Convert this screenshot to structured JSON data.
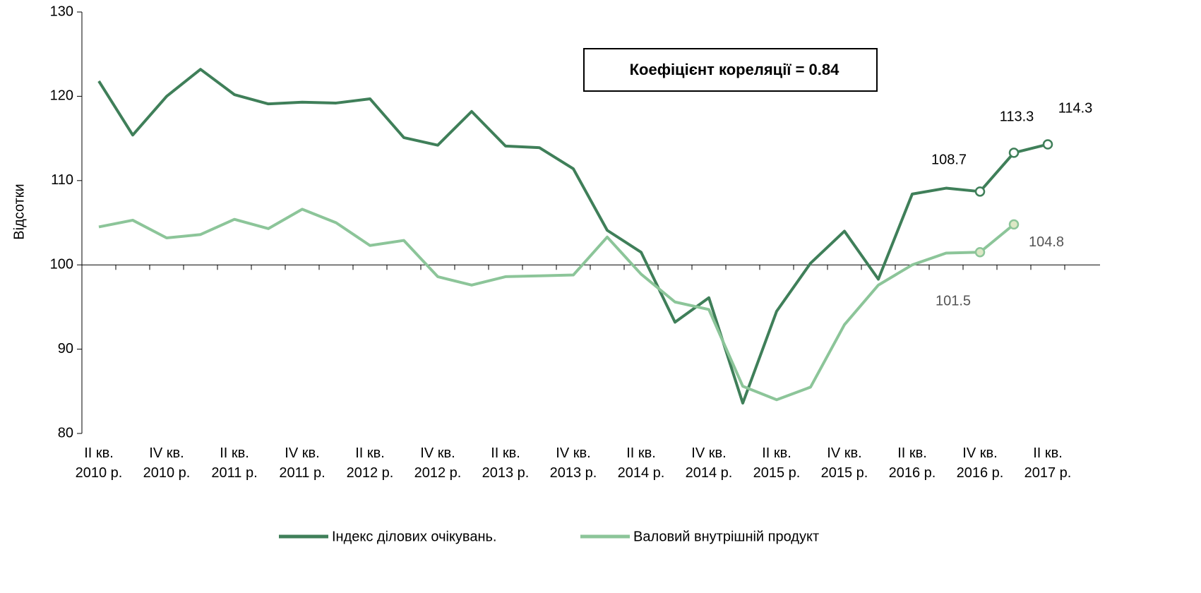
{
  "chart_data": {
    "type": "line",
    "ylabel": "Відсотки",
    "annotation": "Коефіцієнт кореляції = 0.84",
    "categories": [
      "II кв.\n2010 р.",
      null,
      "IV кв.\n2010 р.",
      null,
      "II кв.\n2011 р.",
      null,
      "IV кв.\n2011 р.",
      null,
      "II кв.\n2012 р.",
      null,
      "IV кв.\n2012 р.",
      null,
      "II кв.\n2013 р.",
      null,
      "IV кв.\n2013 р.",
      null,
      "II кв.\n2014 р.",
      null,
      "IV кв.\n2014 р.",
      null,
      "II кв.\n2015 р.",
      null,
      "IV кв.\n2015 р.",
      null,
      "II кв.\n2016 р.",
      null,
      "IV кв.\n2016 р.",
      null,
      "II кв.\n2017 р."
    ],
    "series": [
      {
        "name": "Індекс ділових очікувань.",
        "color": "#3f7f59",
        "values": [
          121.8,
          115.4,
          120,
          123.2,
          120.2,
          119.1,
          119.3,
          119.2,
          119.7,
          115.1,
          114.2,
          118.2,
          114.1,
          113.9,
          111.4,
          104.1,
          101.5,
          93.2,
          96.1,
          83.6,
          94.5,
          100.2,
          104,
          98.3,
          108.4,
          109.1,
          108.7,
          113.3,
          114.3
        ],
        "value_labels": [
          null,
          null,
          null,
          null,
          null,
          null,
          null,
          null,
          null,
          null,
          null,
          null,
          null,
          null,
          null,
          null,
          null,
          null,
          null,
          null,
          null,
          null,
          null,
          null,
          null,
          null,
          "108.7",
          "113.3",
          "114.3"
        ]
      },
      {
        "name": "Валовий внутрішній продукт",
        "color": "#8cc599",
        "values": [
          104.5,
          105.3,
          103.2,
          103.6,
          105.4,
          104.3,
          106.6,
          105,
          102.3,
          102.9,
          98.6,
          97.6,
          98.6,
          98.7,
          98.8,
          103.3,
          98.9,
          95.6,
          94.7,
          85.6,
          84,
          85.5,
          92.9,
          97.6,
          100,
          101.4,
          101.5,
          104.8,
          null
        ],
        "value_labels": [
          null,
          null,
          null,
          null,
          null,
          null,
          null,
          null,
          null,
          null,
          null,
          null,
          null,
          null,
          null,
          null,
          null,
          null,
          null,
          null,
          null,
          null,
          null,
          null,
          null,
          null,
          "101.5",
          "104.8",
          null
        ]
      }
    ],
    "ylim": [
      80,
      130
    ],
    "yticks": [
      80,
      90,
      100,
      110,
      120,
      130
    ],
    "x_axis_at": 100,
    "legend": "bottom"
  }
}
